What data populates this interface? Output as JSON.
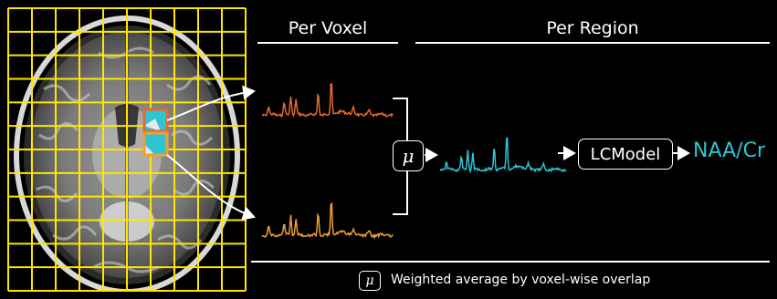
{
  "headers": {
    "per_voxel": "Per Voxel",
    "per_region": "Per Region"
  },
  "operators": {
    "weighted_average_symbol": "μ",
    "fitting_tool": "LCModel"
  },
  "output_metric": "NAA/Cr",
  "legend": {
    "symbol": "μ",
    "text": "Weighted average by voxel-wise overlap"
  },
  "colors": {
    "voxel_top_spectrum": "#e8662f",
    "voxel_bottom_spectrum": "#f0a030",
    "region_spectrum": "#2ec4d2",
    "grid": "#ffe600",
    "region_mask": "#2ec4d2",
    "text": "#ffffff",
    "background": "#000000"
  },
  "grid": {
    "columns": 10,
    "rows": 12
  }
}
